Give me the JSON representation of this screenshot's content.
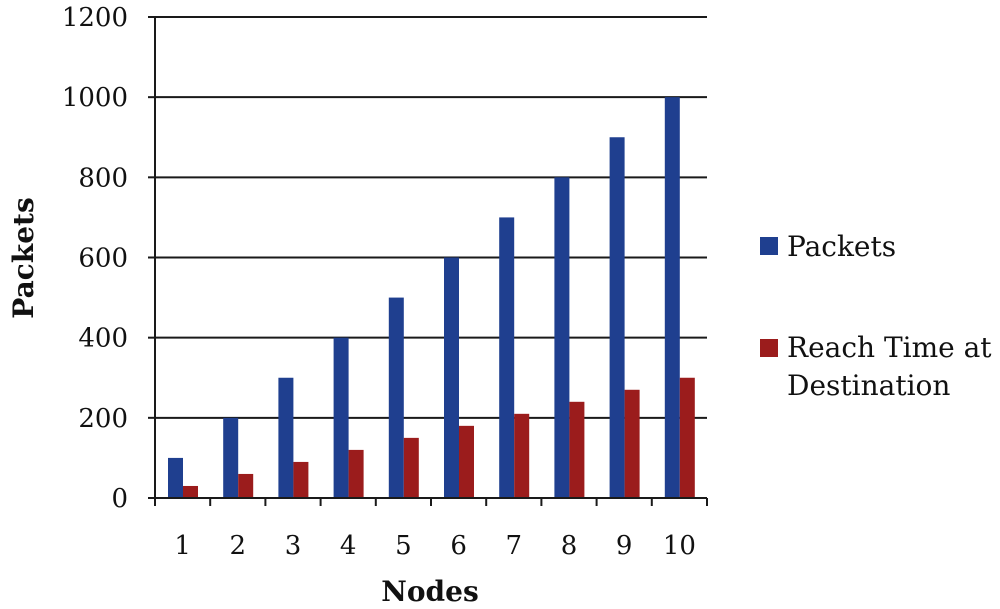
{
  "chart_data": {
    "type": "bar",
    "title": "",
    "xlabel": "Nodes",
    "ylabel": "Packets",
    "categories": [
      "1",
      "2",
      "3",
      "4",
      "5",
      "6",
      "7",
      "8",
      "9",
      "10"
    ],
    "series": [
      {
        "name": "Packets",
        "color": "#1f3f8f",
        "values": [
          100,
          200,
          300,
          400,
          500,
          600,
          700,
          800,
          900,
          1000
        ]
      },
      {
        "name": "Reach Time at Destination",
        "color": "#9b1c1c",
        "values": [
          30,
          60,
          90,
          120,
          150,
          180,
          210,
          240,
          270,
          300
        ]
      }
    ],
    "ylim": [
      0,
      1200
    ],
    "yticks": [
      "0",
      "200",
      "400",
      "600",
      "800",
      "1000",
      "1200"
    ],
    "grid": true,
    "legend_position": "right"
  }
}
